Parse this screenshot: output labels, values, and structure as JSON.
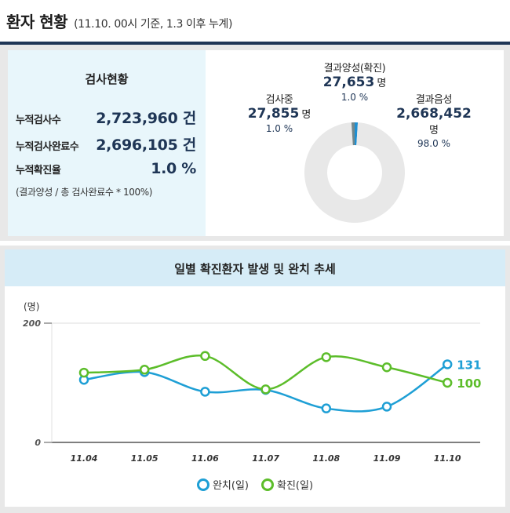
{
  "header": {
    "title": "환자 현황",
    "subtitle": "(11.10. 00시 기준, 1.3 이후 누계)"
  },
  "stats": {
    "title": "검사현황",
    "rows": [
      {
        "label": "누적검사수",
        "value": "2,723,960 건"
      },
      {
        "label": "누적검사완료수",
        "value": "2,696,105 건"
      },
      {
        "label": "누적확진율",
        "value": "1.0 %"
      }
    ],
    "note": "(결과양성 / 총 검사완료수 * 100%)"
  },
  "donut": {
    "segments": [
      {
        "name": "결과양성(확진)",
        "count": "27,653",
        "unit": "명",
        "pct": "1.0 %",
        "value": 27653,
        "color": "#1e8fd2"
      },
      {
        "name": "결과음성",
        "count": "2,668,452",
        "unit": "명",
        "pct": "98.0 %",
        "value": 2668452,
        "color": "#e8e8e8"
      },
      {
        "name": "검사중",
        "count": "27,855",
        "unit": "명",
        "pct": "1.0 %",
        "value": 27855,
        "color": "#73878c"
      }
    ]
  },
  "chart": {
    "title": "일별 확진환자 발생 및 완치 추세",
    "ylabel": "(명)"
  },
  "chart_data": {
    "type": "line",
    "categories": [
      "11.04",
      "11.05",
      "11.06",
      "11.07",
      "11.08",
      "11.09",
      "11.10"
    ],
    "series": [
      {
        "name": "완치(일)",
        "values": [
          105,
          118,
          85,
          88,
          57,
          60,
          131
        ],
        "color": "#1e9fd5"
      },
      {
        "name": "확진(일)",
        "values": [
          117,
          122,
          145,
          89,
          143,
          126,
          100
        ],
        "color": "#5cbd2a"
      }
    ],
    "ylim": [
      0,
      200
    ],
    "yticks": [
      0,
      200
    ],
    "end_labels": [
      "131",
      "100"
    ]
  }
}
